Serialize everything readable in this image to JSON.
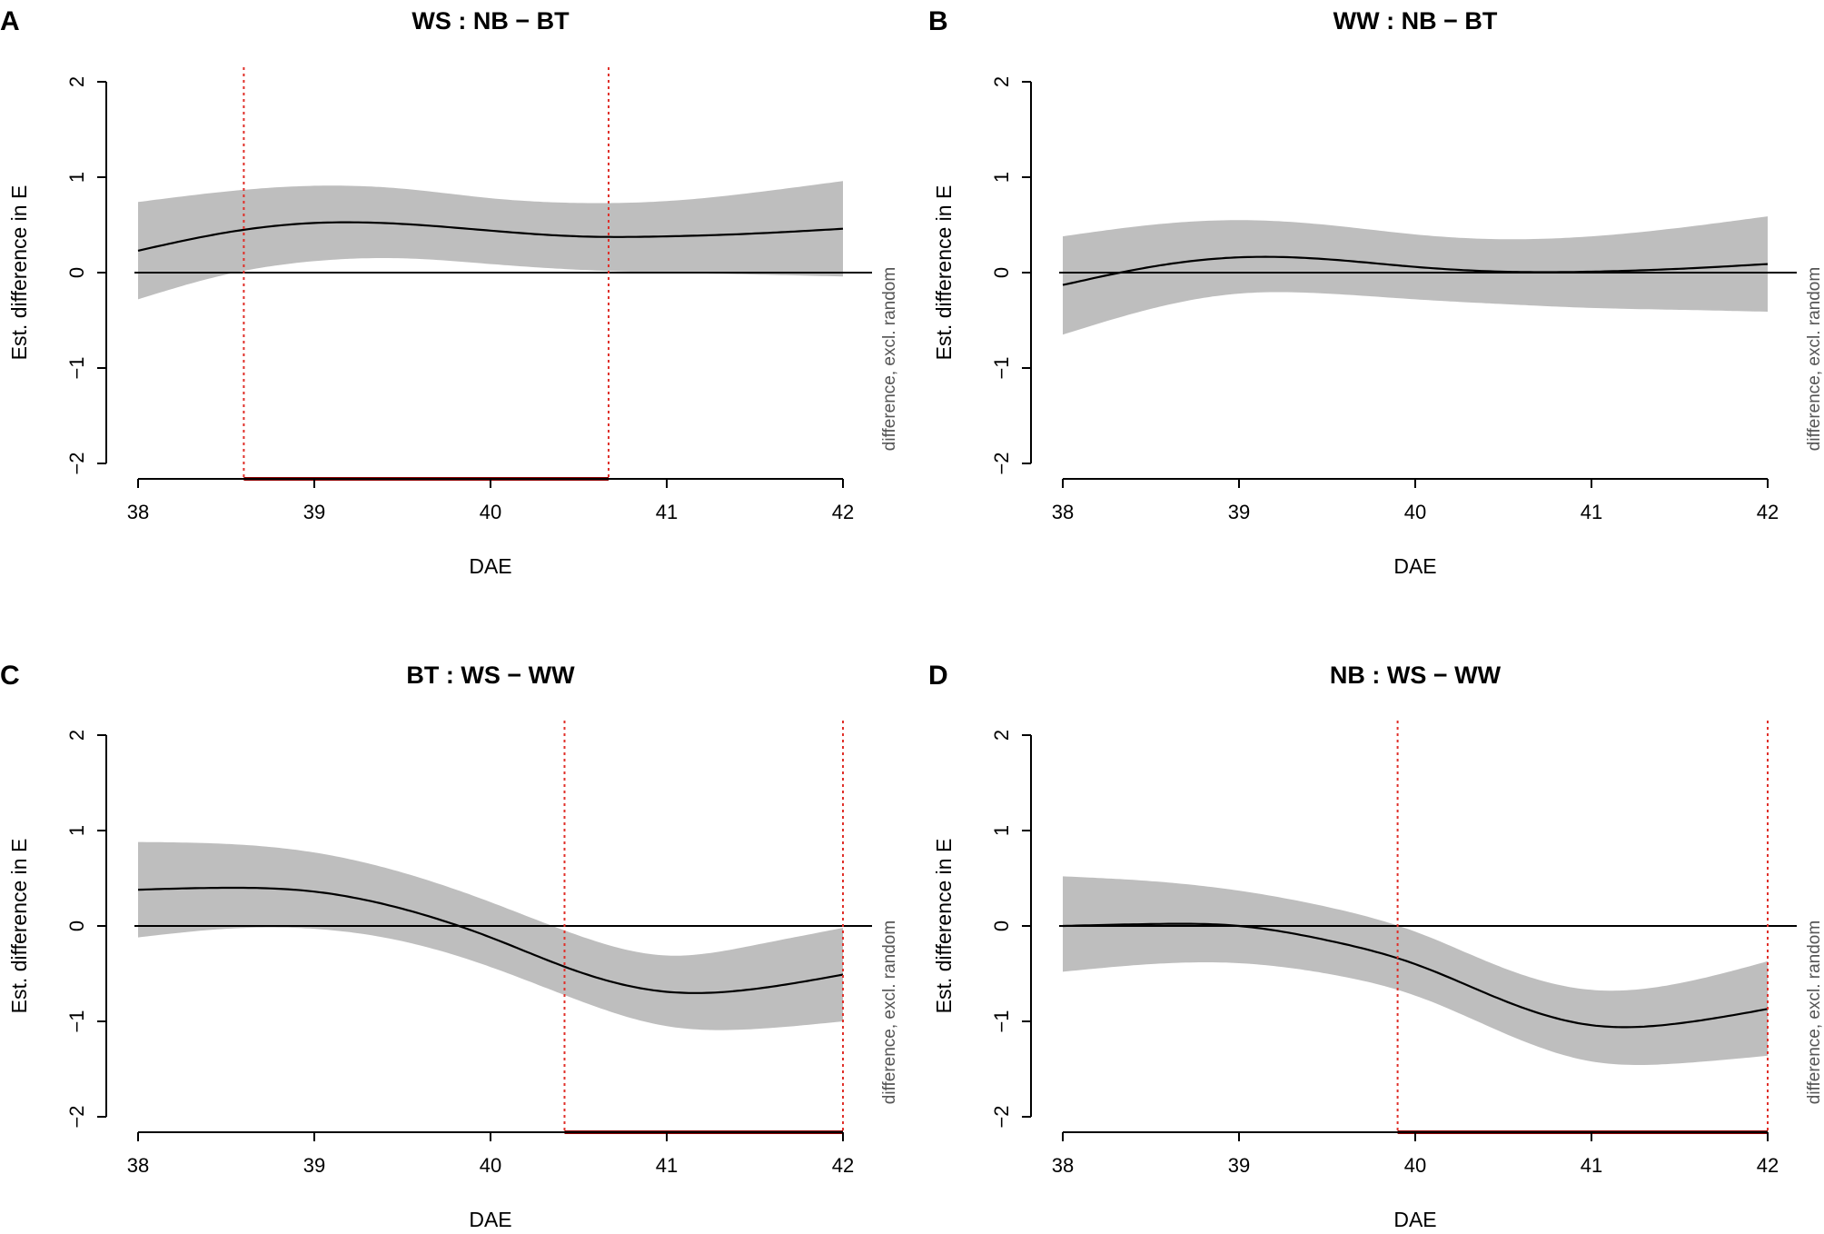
{
  "chart_data": [
    {
      "type": "area",
      "panel": "A",
      "title": "WS : NB − BT",
      "xlabel": "DAE",
      "ylabel": "Est. difference in E",
      "side_note": "difference, excl. random",
      "xlim": [
        38,
        42
      ],
      "ylim": [
        -2,
        2
      ],
      "x_ticks": [
        "38",
        "39",
        "40",
        "41",
        "42"
      ],
      "y_ticks": [
        "−2",
        "−1",
        "0",
        "1",
        "2"
      ],
      "x": [
        38.0,
        38.5,
        39.0,
        39.5,
        40.0,
        40.5,
        41.0,
        41.5,
        42.0
      ],
      "fit": [
        0.23,
        0.42,
        0.52,
        0.51,
        0.44,
        0.38,
        0.38,
        0.41,
        0.46
      ],
      "upper": [
        0.74,
        0.85,
        0.91,
        0.88,
        0.78,
        0.73,
        0.75,
        0.84,
        0.96
      ],
      "lower": [
        -0.28,
        -0.02,
        0.12,
        0.15,
        0.09,
        0.03,
        0.0,
        -0.02,
        -0.04
      ],
      "significant_interval": [
        38.6,
        40.67
      ]
    },
    {
      "type": "area",
      "panel": "B",
      "title": "WW : NB − BT",
      "xlabel": "DAE",
      "ylabel": "Est. difference in E",
      "side_note": "difference, excl. random",
      "xlim": [
        38,
        42
      ],
      "ylim": [
        -2,
        2
      ],
      "x_ticks": [
        "38",
        "39",
        "40",
        "41",
        "42"
      ],
      "y_ticks": [
        "−2",
        "−1",
        "0",
        "1",
        "2"
      ],
      "x": [
        38.0,
        38.5,
        39.0,
        39.5,
        40.0,
        40.5,
        41.0,
        41.5,
        42.0
      ],
      "fit": [
        -0.13,
        0.06,
        0.16,
        0.14,
        0.06,
        0.01,
        0.01,
        0.04,
        0.09
      ],
      "upper": [
        0.38,
        0.5,
        0.55,
        0.5,
        0.4,
        0.35,
        0.38,
        0.47,
        0.59
      ],
      "lower": [
        -0.65,
        -0.38,
        -0.22,
        -0.22,
        -0.28,
        -0.33,
        -0.37,
        -0.39,
        -0.41
      ],
      "significant_interval": null
    },
    {
      "type": "area",
      "panel": "C",
      "title": "BT : WS − WW",
      "xlabel": "DAE",
      "ylabel": "Est. difference in E",
      "side_note": "difference, excl. random",
      "xlim": [
        38,
        42
      ],
      "ylim": [
        -2,
        2
      ],
      "x_ticks": [
        "38",
        "39",
        "40",
        "41",
        "42"
      ],
      "y_ticks": [
        "−2",
        "−1",
        "0",
        "1",
        "2"
      ],
      "x": [
        38.0,
        38.5,
        39.0,
        39.5,
        40.0,
        40.5,
        41.0,
        41.5,
        42.0
      ],
      "fit": [
        0.38,
        0.4,
        0.36,
        0.18,
        -0.12,
        -0.48,
        -0.69,
        -0.66,
        -0.51
      ],
      "upper": [
        0.88,
        0.86,
        0.77,
        0.56,
        0.25,
        -0.1,
        -0.31,
        -0.2,
        -0.02
      ],
      "lower": [
        -0.12,
        -0.03,
        -0.03,
        -0.16,
        -0.43,
        -0.78,
        -1.05,
        -1.08,
        -1.0
      ],
      "significant_interval": [
        40.42,
        42.0
      ]
    },
    {
      "type": "area",
      "panel": "D",
      "title": "NB : WS − WW",
      "xlabel": "DAE",
      "ylabel": "Est. difference in E",
      "side_note": "difference, excl. random",
      "xlim": [
        38,
        42
      ],
      "ylim": [
        -2,
        2
      ],
      "x_ticks": [
        "38",
        "39",
        "40",
        "41",
        "42"
      ],
      "y_ticks": [
        "−2",
        "−1",
        "0",
        "1",
        "2"
      ],
      "x": [
        38.0,
        38.5,
        39.0,
        39.5,
        40.0,
        40.5,
        41.0,
        41.5,
        42.0
      ],
      "fit": [
        0.0,
        0.02,
        0.0,
        -0.15,
        -0.4,
        -0.78,
        -1.04,
        -1.02,
        -0.87
      ],
      "upper": [
        0.52,
        0.47,
        0.37,
        0.2,
        -0.06,
        -0.44,
        -0.67,
        -0.6,
        -0.37
      ],
      "lower": [
        -0.48,
        -0.4,
        -0.39,
        -0.5,
        -0.73,
        -1.12,
        -1.42,
        -1.44,
        -1.36
      ],
      "significant_interval": [
        39.9,
        42.0
      ]
    }
  ],
  "colors": {
    "band": "#bebebe",
    "line": "#000000",
    "marker": "#e0302a",
    "interval": "#8b0000"
  }
}
